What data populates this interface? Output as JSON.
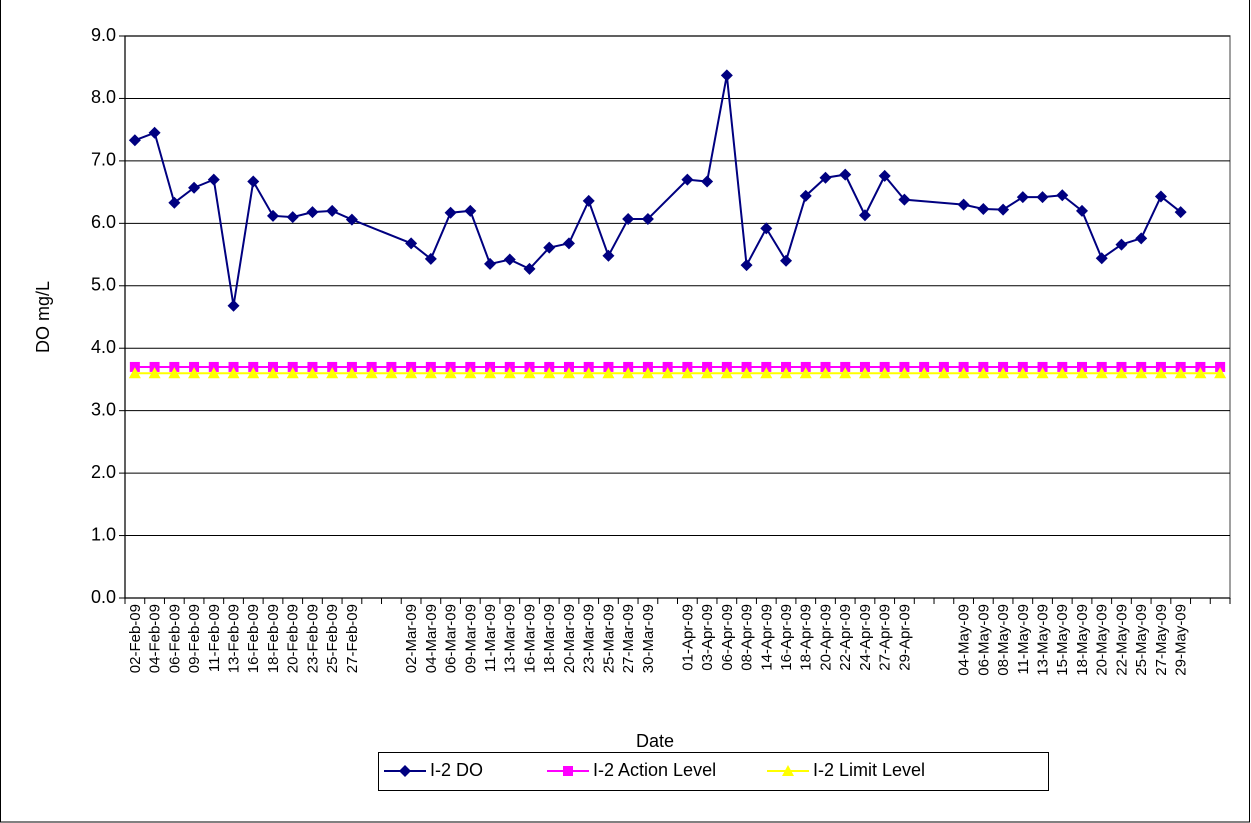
{
  "chart_data": {
    "type": "line",
    "x_label": "Date",
    "y_label": "DO mg/L",
    "categories": [
      "02-Feb-09",
      "04-Feb-09",
      "06-Feb-09",
      "09-Feb-09",
      "11-Feb-09",
      "13-Feb-09",
      "16-Feb-09",
      "18-Feb-09",
      "20-Feb-09",
      "23-Feb-09",
      "25-Feb-09",
      "27-Feb-09",
      null,
      null,
      "02-Mar-09",
      "04-Mar-09",
      "06-Mar-09",
      "09-Mar-09",
      "11-Mar-09",
      "13-Mar-09",
      "16-Mar-09",
      "18-Mar-09",
      "20-Mar-09",
      "23-Mar-09",
      "25-Mar-09",
      "27-Mar-09",
      "30-Mar-09",
      null,
      "01-Apr-09",
      "03-Apr-09",
      "06-Apr-09",
      "08-Apr-09",
      "14-Apr-09",
      "16-Apr-09",
      "18-Apr-09",
      "20-Apr-09",
      "22-Apr-09",
      "24-Apr-09",
      "27-Apr-09",
      "29-Apr-09",
      null,
      null,
      "04-May-09",
      "06-May-09",
      "08-May-09",
      "11-May-09",
      "13-May-09",
      "15-May-09",
      "18-May-09",
      "20-May-09",
      "22-May-09",
      "25-May-09",
      "27-May-09",
      "29-May-09",
      null,
      null
    ],
    "series": [
      {
        "name": "I-2 DO",
        "color": "#000080",
        "marker": "diamond",
        "values": [
          7.33,
          7.45,
          6.33,
          6.57,
          6.7,
          4.68,
          6.67,
          6.12,
          6.1,
          6.18,
          6.2,
          6.06,
          null,
          null,
          5.68,
          5.43,
          6.17,
          6.2,
          5.35,
          5.42,
          5.27,
          5.61,
          5.68,
          6.36,
          5.48,
          6.07,
          6.07,
          null,
          6.7,
          6.67,
          8.37,
          5.33,
          5.92,
          5.4,
          6.44,
          6.73,
          6.78,
          6.13,
          6.76,
          6.38,
          null,
          null,
          6.3,
          6.23,
          6.22,
          6.42,
          6.42,
          6.45,
          6.2,
          5.44,
          5.66,
          5.76,
          6.43,
          6.18,
          null,
          null
        ]
      },
      {
        "name": "I-2 Action Level",
        "color": "#ff00ff",
        "marker": "square",
        "values": [
          3.7,
          3.7,
          3.7,
          3.7,
          3.7,
          3.7,
          3.7,
          3.7,
          3.7,
          3.7,
          3.7,
          3.7,
          3.7,
          3.7,
          3.7,
          3.7,
          3.7,
          3.7,
          3.7,
          3.7,
          3.7,
          3.7,
          3.7,
          3.7,
          3.7,
          3.7,
          3.7,
          3.7,
          3.7,
          3.7,
          3.7,
          3.7,
          3.7,
          3.7,
          3.7,
          3.7,
          3.7,
          3.7,
          3.7,
          3.7,
          3.7,
          3.7,
          3.7,
          3.7,
          3.7,
          3.7,
          3.7,
          3.7,
          3.7,
          3.7,
          3.7,
          3.7,
          3.7,
          3.7,
          3.7,
          3.7
        ]
      },
      {
        "name": "I-2 Limit Level",
        "color": "#ffff00",
        "marker": "triangle",
        "values": [
          3.6,
          3.6,
          3.6,
          3.6,
          3.6,
          3.6,
          3.6,
          3.6,
          3.6,
          3.6,
          3.6,
          3.6,
          3.6,
          3.6,
          3.6,
          3.6,
          3.6,
          3.6,
          3.6,
          3.6,
          3.6,
          3.6,
          3.6,
          3.6,
          3.6,
          3.6,
          3.6,
          3.6,
          3.6,
          3.6,
          3.6,
          3.6,
          3.6,
          3.6,
          3.6,
          3.6,
          3.6,
          3.6,
          3.6,
          3.6,
          3.6,
          3.6,
          3.6,
          3.6,
          3.6,
          3.6,
          3.6,
          3.6,
          3.6,
          3.6,
          3.6,
          3.6,
          3.6,
          3.6,
          3.6,
          3.6
        ]
      }
    ],
    "connect_gaps": true,
    "ylim": [
      0,
      9
    ],
    "yticks": [
      {
        "value": 0,
        "label": "0.0"
      },
      {
        "value": 1,
        "label": "1.0"
      },
      {
        "value": 2,
        "label": "2.0"
      },
      {
        "value": 3,
        "label": "3.0"
      },
      {
        "value": 4,
        "label": "4.0"
      },
      {
        "value": 5,
        "label": "5.0"
      },
      {
        "value": 6,
        "label": "6.0"
      },
      {
        "value": 7,
        "label": "7.0"
      },
      {
        "value": 8,
        "label": "8.0"
      },
      {
        "value": 9,
        "label": "9.0"
      }
    ],
    "grid": true,
    "legend": "bottom"
  }
}
